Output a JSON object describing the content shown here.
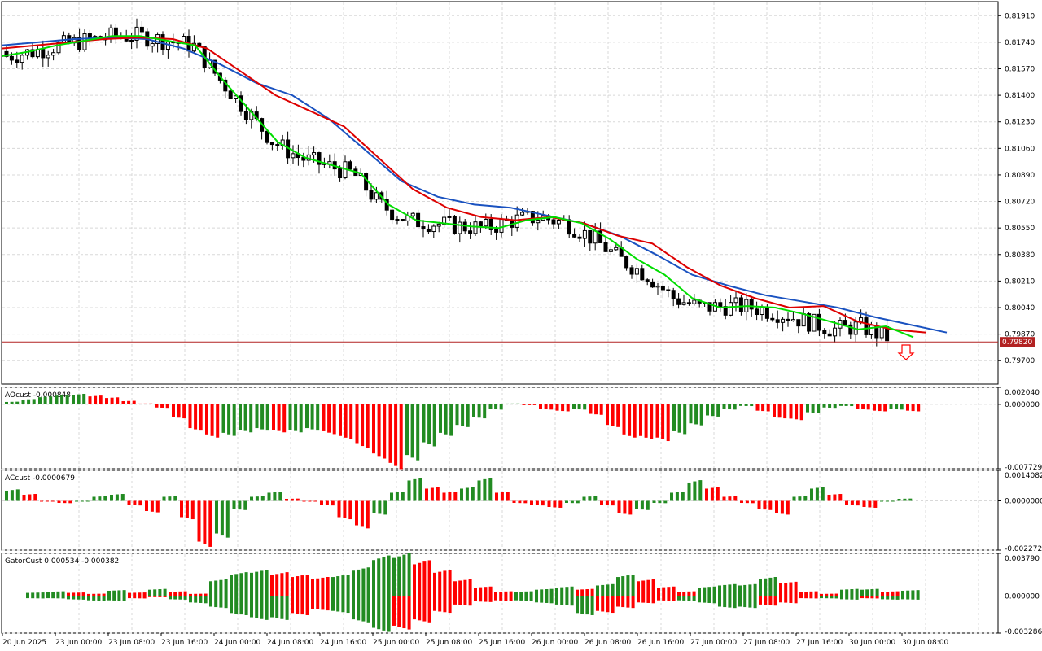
{
  "price_label": "0.79820",
  "colors": {
    "up_bar": "#228b22",
    "down_bar": "#ff0000",
    "lips": "#00dd00",
    "teeth": "#dd0000",
    "jaw": "#1a52c0",
    "candle": "#000000",
    "price_line": "#b22222",
    "grid": "#d8d8d8"
  },
  "chart_data": [
    {
      "type": "candlestick",
      "panel": "main",
      "ylim": [
        0.7955,
        0.82
      ],
      "y_ticks": [
        "0.81910",
        "0.81740",
        "0.81570",
        "0.81400",
        "0.81230",
        "0.81060",
        "0.80890",
        "0.80720",
        "0.80550",
        "0.80380",
        "0.80210",
        "0.80040",
        "0.79870",
        "0.79700"
      ],
      "current_price": 0.7982,
      "bars": 170,
      "alligator": {
        "lips": [
          0.8165,
          0.8168,
          0.8172,
          0.8175,
          0.8178,
          0.8178,
          0.8175,
          0.8172,
          0.815,
          0.813,
          0.811,
          0.81,
          0.8095,
          0.809,
          0.807,
          0.806,
          0.8058,
          0.8056,
          0.8055,
          0.806,
          0.8062,
          0.8058,
          0.8048,
          0.8035,
          0.8025,
          0.801,
          0.8004,
          0.8005,
          0.8004,
          0.8,
          0.7995,
          0.799,
          0.7992,
          0.7985
        ],
        "teeth": [
          0.817,
          0.8172,
          0.8174,
          0.8176,
          0.8177,
          0.8176,
          0.817,
          0.8155,
          0.814,
          0.813,
          0.812,
          0.81,
          0.808,
          0.8068,
          0.8062,
          0.806,
          0.8062,
          0.8058,
          0.805,
          0.8045,
          0.803,
          0.8018,
          0.801,
          0.8004,
          0.8005,
          0.7995,
          0.799,
          0.7988
        ],
        "jaw": [
          0.8172,
          0.8174,
          0.8176,
          0.8177,
          0.8176,
          0.817,
          0.816,
          0.8148,
          0.814,
          0.8125,
          0.8105,
          0.8085,
          0.8075,
          0.807,
          0.8068,
          0.8063,
          0.8058,
          0.805,
          0.8038,
          0.8025,
          0.8018,
          0.8012,
          0.8008,
          0.8004,
          0.7998,
          0.7993,
          0.7988
        ]
      }
    },
    {
      "type": "bar",
      "panel": "AOcust",
      "label": "AOcust -0.000848",
      "ylim": [
        -0.007729,
        0.00204
      ],
      "y_ticks": [
        "0.002040",
        "0.000000",
        "-0.007729"
      ],
      "values": [
        0.0003,
        0.0006,
        0.0009,
        0.0011,
        0.0012,
        0.001,
        0.0008,
        0.0004,
        0.0001,
        -0.0004,
        -0.0016,
        -0.003,
        -0.0038,
        -0.0036,
        -0.0032,
        -0.003,
        -0.0032,
        -0.0032,
        -0.003,
        -0.0034,
        -0.004,
        -0.005,
        -0.0062,
        -0.0074,
        -0.0064,
        -0.0048,
        -0.0036,
        -0.0026,
        -0.0016,
        -0.0006,
        0.0001,
        0.0,
        -0.0006,
        -0.0008,
        -0.0006,
        -0.0012,
        -0.0026,
        -0.0038,
        -0.004,
        -0.0042,
        -0.0034,
        -0.0024,
        -0.0014,
        -0.0006,
        -0.0002,
        -0.0008,
        -0.0016,
        -0.0018,
        -0.001,
        -0.0004,
        -0.0002,
        -0.0006,
        -0.0008,
        -0.0006,
        -0.0008
      ]
    },
    {
      "type": "bar",
      "panel": "ACcust",
      "label": "ACcust -0.0000679",
      "ylim": [
        -0.0022727,
        0.0014082
      ],
      "y_ticks": [
        "0.0014082",
        "0.0000000",
        "-0.0022727"
      ],
      "values": [
        0.0005,
        0.0003,
        0.0,
        -0.0001,
        0.0,
        0.0002,
        0.0003,
        -0.0002,
        -0.0005,
        0.0002,
        -0.0008,
        -0.002,
        -0.0016,
        -0.0004,
        0.0002,
        0.0004,
        0.0001,
        0.0,
        -0.0002,
        -0.0008,
        -0.0012,
        -0.0006,
        0.0004,
        0.001,
        0.0006,
        0.0004,
        0.0006,
        0.001,
        0.0004,
        -0.0001,
        -0.0002,
        -0.0003,
        -0.0001,
        0.0002,
        -0.0002,
        -0.0006,
        -0.0004,
        -0.0001,
        0.0004,
        0.0009,
        0.0006,
        0.0002,
        -0.0001,
        -0.0004,
        -0.0006,
        0.0002,
        0.0006,
        0.0003,
        -0.0002,
        -0.0003,
        0.0,
        0.0001
      ]
    },
    {
      "type": "bar",
      "panel": "GatorCust",
      "label": "GatorCust 0.000534 -0.000382",
      "ylim": [
        -0.003286,
        0.00379
      ],
      "y_ticks": [
        "0.003790",
        "0.000000",
        "-0.003286"
      ],
      "upper": [
        0.0003,
        0.0004,
        0.0003,
        0.0002,
        0.0005,
        0.0003,
        0.0006,
        0.0004,
        0.0002,
        0.0014,
        0.002,
        0.0022,
        0.002,
        0.0018,
        0.0016,
        0.0018,
        0.0024,
        0.0034,
        0.0036,
        0.003,
        0.0022,
        0.0014,
        0.0008,
        0.0004,
        0.0004,
        0.0006,
        0.0008,
        0.0006,
        0.001,
        0.0018,
        0.0014,
        0.0008,
        0.0004,
        0.0008,
        0.001,
        0.001,
        0.0016,
        0.0012,
        0.0004,
        0.0002,
        0.0006,
        0.0006,
        0.0004,
        0.0005
      ],
      "lower": [
        -0.0002,
        -0.0002,
        -0.0003,
        -0.0004,
        -0.0004,
        -0.0002,
        -0.0001,
        -0.0003,
        -0.0006,
        -0.001,
        -0.0016,
        -0.002,
        -0.002,
        -0.0016,
        -0.0012,
        -0.0014,
        -0.0022,
        -0.003,
        -0.0028,
        -0.0022,
        -0.0014,
        -0.0008,
        -0.0005,
        -0.0004,
        -0.0004,
        -0.0006,
        -0.0008,
        -0.0016,
        -0.0014,
        -0.001,
        -0.0006,
        -0.0004,
        -0.0004,
        -0.0006,
        -0.001,
        -0.001,
        -0.0008,
        -0.0006,
        -0.0002,
        -0.0002,
        -0.0003,
        -0.0002,
        -0.0003,
        -0.0003
      ]
    }
  ],
  "time_axis": [
    "20 Jun 2025",
    "23 Jun 00:00",
    "23 Jun 08:00",
    "23 Jun 16:00",
    "24 Jun 00:00",
    "24 Jun 08:00",
    "24 Jun 16:00",
    "25 Jun 00:00",
    "25 Jun 08:00",
    "25 Jun 16:00",
    "26 Jun 00:00",
    "26 Jun 08:00",
    "26 Jun 16:00",
    "27 Jun 00:00",
    "27 Jun 08:00",
    "27 Jun 16:00",
    "30 Jun 00:00",
    "30 Jun 08:00"
  ]
}
